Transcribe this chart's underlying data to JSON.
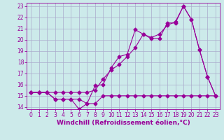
{
  "xlabel": "Windchill (Refroidissement éolien,°C)",
  "background_color": "#cceaea",
  "grid_color": "#aaaacc",
  "line_color": "#990099",
  "xlim_min": -0.5,
  "xlim_max": 23.5,
  "ylim_min": 13.8,
  "ylim_max": 23.3,
  "yticks": [
    14,
    15,
    16,
    17,
    18,
    19,
    20,
    21,
    22,
    23
  ],
  "xticks": [
    0,
    1,
    2,
    3,
    4,
    5,
    6,
    7,
    8,
    9,
    10,
    11,
    12,
    13,
    14,
    15,
    16,
    17,
    18,
    19,
    20,
    21,
    22,
    23
  ],
  "series1_x": [
    0,
    1,
    2,
    3,
    4,
    5,
    6,
    7,
    8,
    9,
    10,
    11,
    12,
    13,
    14,
    15,
    16,
    17,
    18,
    19,
    20,
    21,
    22,
    23
  ],
  "series1_y": [
    15.3,
    15.3,
    15.3,
    14.7,
    14.7,
    14.7,
    13.8,
    14.3,
    15.9,
    16.0,
    17.5,
    18.5,
    18.7,
    20.9,
    20.5,
    20.1,
    20.1,
    21.5,
    21.5,
    23.0,
    21.8,
    19.1,
    16.7,
    15.0
  ],
  "series2_x": [
    0,
    1,
    2,
    3,
    4,
    5,
    6,
    7,
    8,
    9,
    10,
    11,
    12,
    13,
    14,
    15,
    16,
    17,
    18,
    19,
    20,
    21,
    22,
    23
  ],
  "series2_y": [
    15.3,
    15.3,
    15.3,
    15.3,
    15.3,
    15.3,
    15.3,
    15.3,
    15.5,
    16.5,
    17.3,
    17.8,
    18.5,
    19.3,
    20.5,
    20.2,
    20.5,
    21.3,
    21.6,
    23.0,
    21.8,
    19.1,
    16.7,
    15.0
  ],
  "series3_x": [
    0,
    1,
    2,
    3,
    4,
    5,
    6,
    7,
    8,
    9,
    10,
    11,
    12,
    13,
    14,
    15,
    16,
    17,
    18,
    19,
    20,
    21,
    22,
    23
  ],
  "series3_y": [
    15.3,
    15.3,
    15.3,
    14.7,
    14.7,
    14.7,
    14.7,
    14.3,
    14.3,
    15.0,
    15.0,
    15.0,
    15.0,
    15.0,
    15.0,
    15.0,
    15.0,
    15.0,
    15.0,
    15.0,
    15.0,
    15.0,
    15.0,
    15.0
  ],
  "marker": "D",
  "marker_size": 2.5,
  "linewidth": 0.8,
  "font_size_ticks": 5.5,
  "font_size_xlabel": 6.5
}
